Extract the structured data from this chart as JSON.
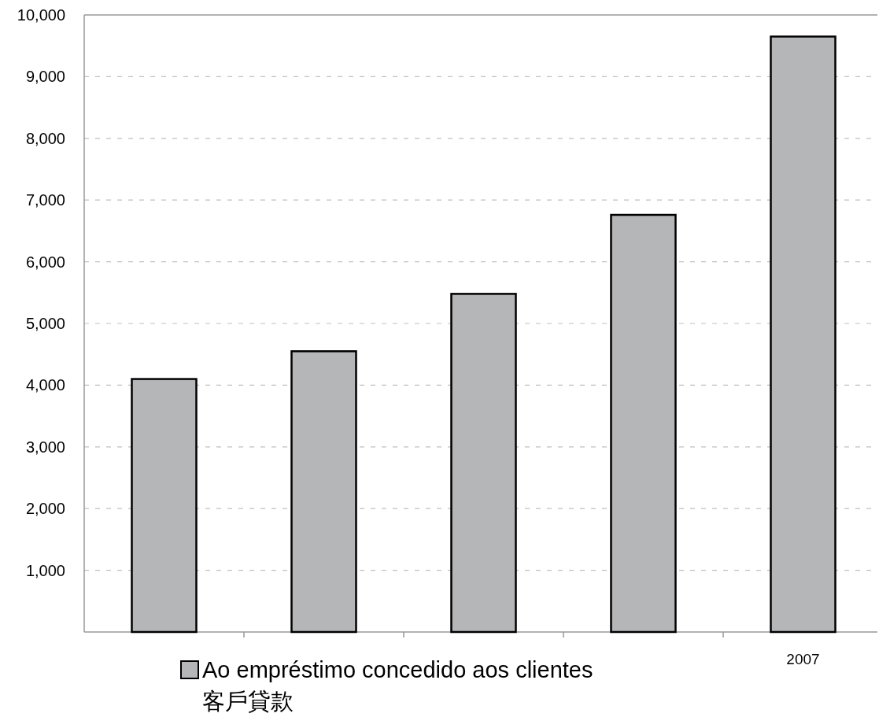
{
  "chart_data": {
    "type": "bar",
    "categories": [
      null,
      null,
      null,
      null,
      "2007"
    ],
    "series": [
      {
        "name": "Ao empréstimo concedido aos clientes\n客戶貸款",
        "color": "#b5b6b8",
        "values": [
          4100,
          4550,
          5480,
          6760,
          9650
        ]
      }
    ],
    "ylim": [
      0,
      10000
    ],
    "yticks": [
      {
        "value": 0,
        "label": null
      },
      {
        "value": 1000,
        "label": "1,000"
      },
      {
        "value": 2000,
        "label": "2,000"
      },
      {
        "value": 3000,
        "label": "3,000"
      },
      {
        "value": 4000,
        "label": "4,000"
      },
      {
        "value": 5000,
        "label": "5,000"
      },
      {
        "value": 6000,
        "label": "6,000"
      },
      {
        "value": 7000,
        "label": "7,000"
      },
      {
        "value": 8000,
        "label": "8,000"
      },
      {
        "value": 9000,
        "label": "9,000"
      },
      {
        "value": 10000,
        "label": "10,000"
      }
    ],
    "grid": "y",
    "legend": "bottom"
  }
}
